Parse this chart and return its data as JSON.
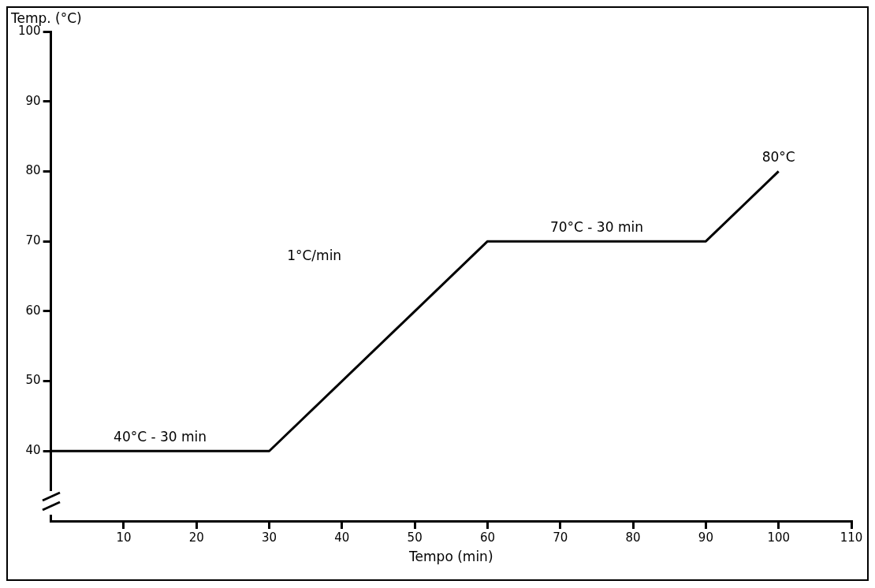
{
  "chart_data": {
    "type": "line",
    "ylabel": "Temp. (°C)",
    "xlabel": "Tempo (min)",
    "x": [
      0,
      30,
      60,
      90,
      100
    ],
    "series": [
      {
        "color": "#000000",
        "values": [
          40,
          40,
          70,
          70,
          80
        ]
      }
    ],
    "xlim": [
      0,
      110
    ],
    "xticks": [
      10,
      20,
      30,
      40,
      50,
      60,
      70,
      80,
      90,
      100,
      110
    ],
    "ylim": [
      30,
      100
    ],
    "yticks": [
      40,
      50,
      60,
      70,
      80,
      90,
      100
    ],
    "grid": false,
    "legend": false,
    "marker": "none",
    "line_style": "solid",
    "annotations": [
      {
        "text": "40°C - 30 min",
        "x": 15,
        "y": 40
      },
      "1°C/min",
      {
        "text": "70°C - 30 min",
        "x": 75,
        "y": 70
      },
      {
        "text": "80°C",
        "x": 100,
        "y": 80
      }
    ]
  }
}
